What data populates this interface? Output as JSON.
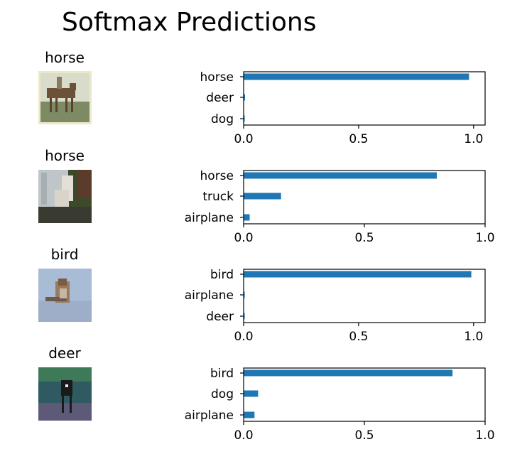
{
  "title": "Softmax Predictions",
  "bar_color": "#1f77b4",
  "images": [
    {
      "label": "horse",
      "icon": "horse-with-rider-photo",
      "colors": {
        "sky": "#d9dccb",
        "ground": "#7d8a64",
        "subject": "#6b5137",
        "frame": "#ece9c9"
      }
    },
    {
      "label": "horse",
      "icon": "white-horse-photo",
      "colors": {
        "sky": "#bfc6c9",
        "ground": "#3c4a2a",
        "subject": "#e4e0d8",
        "frame": "#5b3b2a"
      }
    },
    {
      "label": "bird",
      "icon": "sparrow-photo",
      "colors": {
        "sky": "#a9bcd6",
        "ground": "#9eaec9",
        "subject": "#9a7a5e",
        "frame": "#c9d4e6"
      }
    },
    {
      "label": "deer",
      "icon": "deer-photo",
      "colors": {
        "sky": "#2f5a62",
        "ground": "#5d5a79",
        "subject": "#1a1a1a",
        "frame": "#3e7a5a"
      }
    }
  ],
  "chart_data": [
    {
      "type": "bar",
      "orientation": "horizontal",
      "categories": [
        "horse",
        "deer",
        "dog"
      ],
      "values": [
        0.98,
        0.006,
        0.002
      ],
      "xlim": [
        0,
        1.05
      ],
      "xticks": [
        "0.0",
        "0.5",
        "1.0"
      ],
      "tick_values": [
        0,
        0.5,
        1.0
      ]
    },
    {
      "type": "bar",
      "orientation": "horizontal",
      "categories": [
        "horse",
        "truck",
        "airplane"
      ],
      "values": [
        0.8,
        0.155,
        0.025
      ],
      "xlim": [
        0,
        1.0
      ],
      "xticks": [
        "0.0",
        "0.5",
        "1.0"
      ],
      "tick_values": [
        0,
        0.5,
        1.0
      ]
    },
    {
      "type": "bar",
      "orientation": "horizontal",
      "categories": [
        "bird",
        "airplane",
        "deer"
      ],
      "values": [
        0.99,
        0.002,
        0.001
      ],
      "xlim": [
        0,
        1.05
      ],
      "xticks": [
        "0.0",
        "0.5",
        "1.0"
      ],
      "tick_values": [
        0,
        0.5,
        1.0
      ]
    },
    {
      "type": "bar",
      "orientation": "horizontal",
      "categories": [
        "bird",
        "dog",
        "airplane"
      ],
      "values": [
        0.865,
        0.06,
        0.045
      ],
      "xlim": [
        0,
        1.0
      ],
      "xticks": [
        "0.0",
        "0.5",
        "1.0"
      ],
      "tick_values": [
        0,
        0.5,
        1.0
      ]
    }
  ]
}
